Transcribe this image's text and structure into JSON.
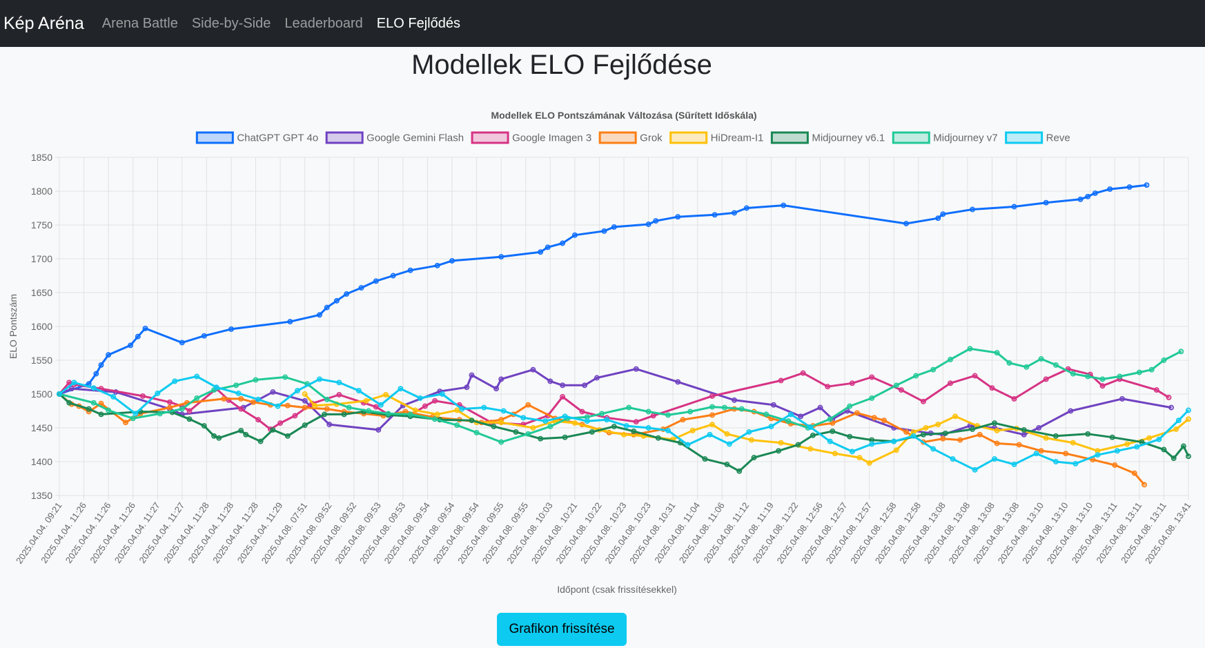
{
  "nav": {
    "brand": "Kép Aréna",
    "links": [
      "Arena Battle",
      "Side-by-Side",
      "Leaderboard",
      "ELO Fejlődés"
    ]
  },
  "page": {
    "title": "Modellek ELO Fejlődése",
    "refresh_label": "Grafikon frissítése"
  },
  "chart_data": {
    "type": "line",
    "title": "Modellek ELO Pontszámának Változása (Sűrített Időskála)",
    "xlabel": "Időpont (csak frissítésekkel)",
    "ylabel": "ELO Pontszám",
    "ylim": [
      1350,
      1850
    ],
    "yticks": [
      1850,
      1800,
      1750,
      1700,
      1650,
      1600,
      1550,
      1500,
      1450,
      1400,
      1350
    ],
    "xlim": [
      0,
      46
    ],
    "grid": true,
    "legend": "top",
    "x_tick_labels": [
      "2025.04.04. 09:21",
      "2025.04.04. 11:26",
      "2025.04.04. 11:26",
      "2025.04.04. 11:26",
      "2025.04.04. 11:27",
      "2025.04.04. 11:27",
      "2025.04.04. 11:28",
      "2025.04.04. 11:28",
      "2025.04.04. 11:28",
      "2025.04.04. 11:29",
      "2025.04.08. 07:51",
      "2025.04.08. 09:52",
      "2025.04.08. 09:52",
      "2025.04.08. 09:53",
      "2025.04.08. 09:53",
      "2025.04.08. 09:54",
      "2025.04.08. 09:54",
      "2025.04.08. 09:54",
      "2025.04.08. 09:55",
      "2025.04.08. 09:55",
      "2025.04.08. 10:03",
      "2025.04.08. 10:21",
      "2025.04.08. 10:22",
      "2025.04.08. 10:23",
      "2025.04.08. 10:23",
      "2025.04.08. 10:31",
      "2025.04.08. 11:04",
      "2025.04.08. 11:06",
      "2025.04.08. 11:12",
      "2025.04.08. 11:19",
      "2025.04.08. 11:22",
      "2025.04.08. 12:56",
      "2025.04.08. 12:57",
      "2025.04.08. 12:57",
      "2025.04.08. 12:58",
      "2025.04.08. 12:58",
      "2025.04.08. 13:08",
      "2025.04.08. 13:08",
      "2025.04.08. 13:08",
      "2025.04.08. 13:08",
      "2025.04.08. 13:10",
      "2025.04.08. 13:10",
      "2025.04.08. 13:10",
      "2025.04.08. 13:11",
      "2025.04.08. 13:11",
      "2025.04.08. 13:11",
      "2025.04.08. 13:41"
    ],
    "series": [
      {
        "name": "ChatGPT GPT 4o",
        "color": "#0d6efd",
        "x": [
          0,
          1.2,
          1.5,
          1.7,
          2,
          2.9,
          3.2,
          3.5,
          5,
          5.9,
          7,
          9.4,
          10.6,
          10.9,
          11.3,
          11.7,
          12.3,
          12.9,
          13.6,
          14.3,
          15.4,
          16,
          18,
          19.6,
          19.9,
          20.5,
          21,
          22.2,
          22.6,
          24,
          24.3,
          25.2,
          26.7,
          27.5,
          28,
          29.5,
          34.5,
          35.8,
          36,
          37.2,
          38.9,
          40.2,
          41.6,
          41.9,
          42.2,
          42.8,
          43.6,
          44.3
        ],
        "y": [
          1500,
          1515,
          1530,
          1543,
          1558,
          1572,
          1585,
          1597,
          1576,
          1586,
          1596,
          1607,
          1617,
          1628,
          1638,
          1648,
          1657,
          1667,
          1675,
          1683,
          1690,
          1697,
          1703,
          1710,
          1717,
          1723,
          1735,
          1741,
          1747,
          1751,
          1756,
          1762,
          1765,
          1768,
          1775,
          1779,
          1752,
          1760,
          1766,
          1773,
          1777,
          1783,
          1788,
          1792,
          1797,
          1803,
          1806,
          1809
        ]
      },
      {
        "name": "Google Gemini Flash",
        "color": "#6f42c1",
        "x": [
          0,
          0.5,
          2.3,
          4.5,
          5,
          7.5,
          8.7,
          10,
          11,
          13,
          14,
          15.5,
          16.6,
          16.8,
          17.8,
          18,
          19.3,
          20,
          20.5,
          21.4,
          21.9,
          23.5,
          25.2,
          27.5,
          29.1,
          30.2,
          31,
          31.5,
          32.1,
          34,
          35.5,
          36,
          37.1,
          38.1,
          39.3,
          39.9,
          41.2,
          43.3,
          45.3
        ],
        "y": [
          1500,
          1508,
          1503,
          1478,
          1470,
          1480,
          1503,
          1490,
          1455,
          1447,
          1483,
          1504,
          1510,
          1528,
          1508,
          1522,
          1536,
          1519,
          1513,
          1513,
          1524,
          1537,
          1518,
          1491,
          1484,
          1467,
          1480,
          1463,
          1475,
          1450,
          1442,
          1440,
          1453,
          1450,
          1440,
          1450,
          1475,
          1493,
          1480
        ]
      },
      {
        "name": "Google Imagen 3",
        "color": "#d63384",
        "x": [
          0,
          0.4,
          0.6,
          1.7,
          3.4,
          4.5,
          5,
          5.3,
          6.4,
          6.9,
          7.4,
          8.1,
          8.6,
          9,
          9.6,
          10.3,
          11.4,
          12.4,
          12.9,
          13.4,
          14.3,
          14.9,
          15.3,
          16.3,
          17.6,
          18.9,
          19.9,
          20.5,
          21.3,
          22.3,
          23.5,
          24.2,
          26.6,
          29.4,
          30.3,
          31.3,
          32.3,
          33.1,
          34.3,
          35.2,
          36.3,
          37.3,
          38,
          38.9,
          40.2,
          41.1,
          42,
          42.5,
          43.2,
          44.7,
          45.2
        ],
        "y": [
          1500,
          1517,
          1514,
          1508,
          1497,
          1488,
          1482,
          1475,
          1508,
          1491,
          1478,
          1462,
          1448,
          1457,
          1468,
          1486,
          1499,
          1487,
          1481,
          1470,
          1469,
          1482,
          1490,
          1484,
          1458,
          1455,
          1468,
          1496,
          1474,
          1465,
          1459,
          1468,
          1497,
          1520,
          1531,
          1511,
          1516,
          1525,
          1506,
          1489,
          1516,
          1527,
          1509,
          1493,
          1522,
          1537,
          1529,
          1512,
          1522,
          1506,
          1495
        ]
      },
      {
        "name": "Grok",
        "color": "#fd7e14",
        "x": [
          0,
          0.5,
          0.8,
          1.2,
          1.7,
          2.7,
          3.3,
          4.5,
          5.2,
          6.7,
          7.4,
          7.9,
          8.6,
          9.3,
          10,
          10.9,
          11.6,
          12.4,
          13.2,
          14.1,
          15.2,
          16.3,
          17.2,
          18,
          18.5,
          19.1,
          20.2,
          21.3,
          22.4,
          23.4,
          24.6,
          25.4,
          26.6,
          27.5,
          28.3,
          29,
          29.8,
          30.7,
          31.5,
          32.5,
          33.2,
          33.6,
          34.5,
          35.2,
          36,
          36.7,
          37.5,
          38.2,
          39.1,
          40,
          41,
          42.1,
          43,
          43.8,
          44.2
        ],
        "y": [
          1500,
          1485,
          1482,
          1474,
          1486,
          1458,
          1471,
          1480,
          1487,
          1493,
          1493,
          1488,
          1484,
          1483,
          1480,
          1478,
          1474,
          1471,
          1468,
          1474,
          1466,
          1462,
          1458,
          1462,
          1470,
          1484,
          1464,
          1455,
          1443,
          1440,
          1448,
          1462,
          1469,
          1478,
          1474,
          1464,
          1456,
          1453,
          1457,
          1472,
          1465,
          1461,
          1444,
          1429,
          1434,
          1432,
          1440,
          1427,
          1425,
          1416,
          1412,
          1403,
          1395,
          1383,
          1366
        ]
      },
      {
        "name": "HiDream-I1",
        "color": "#ffc107",
        "x": [
          10,
          10.4,
          11.3,
          12.5,
          13.3,
          14.5,
          15.4,
          16.2,
          17,
          18,
          19.3,
          20.2,
          21,
          22,
          23,
          23.8,
          25,
          25.8,
          26.6,
          27.2,
          28.2,
          29.4,
          30.6,
          31.6,
          32.6,
          33,
          34.1,
          34.8,
          35.3,
          35.8,
          36.5,
          37.4,
          38.2,
          39,
          40.2,
          41.3,
          42.3,
          43.5,
          44.4,
          45.5,
          46
        ],
        "y": [
          1500,
          1483,
          1485,
          1490,
          1499,
          1476,
          1470,
          1476,
          1458,
          1458,
          1450,
          1460,
          1457,
          1447,
          1440,
          1438,
          1433,
          1446,
          1455,
          1441,
          1432,
          1428,
          1419,
          1412,
          1406,
          1398,
          1417,
          1444,
          1450,
          1455,
          1467,
          1453,
          1446,
          1449,
          1435,
          1428,
          1416,
          1426,
          1435,
          1448,
          1463
        ]
      },
      {
        "name": "Midjourney v6.1",
        "color": "#198754",
        "x": [
          0,
          0.4,
          1.2,
          1.7,
          3.3,
          4.6,
          5.3,
          5.9,
          6.3,
          6.5,
          7.4,
          7.6,
          8.2,
          8.7,
          9.3,
          10,
          10.8,
          11.6,
          12.4,
          13.4,
          14.3,
          15.5,
          16.8,
          17.7,
          18.6,
          19.6,
          20.6,
          21.7,
          22.6,
          23.4,
          24.4,
          25.3,
          26.3,
          27.2,
          27.7,
          28.3,
          29.3,
          30.1,
          30.7,
          31.5,
          32.2,
          33.1,
          34,
          35.2,
          36.1,
          37.2,
          38.1,
          39.3,
          40.6,
          41.9,
          42.9,
          44.1,
          45,
          45.4,
          45.8,
          46
        ],
        "y": [
          1500,
          1487,
          1478,
          1470,
          1474,
          1473,
          1463,
          1453,
          1438,
          1435,
          1446,
          1440,
          1430,
          1447,
          1438,
          1454,
          1470,
          1470,
          1474,
          1469,
          1467,
          1462,
          1461,
          1452,
          1444,
          1434,
          1436,
          1444,
          1452,
          1445,
          1435,
          1428,
          1404,
          1396,
          1386,
          1406,
          1416,
          1425,
          1439,
          1445,
          1437,
          1432,
          1430,
          1440,
          1442,
          1448,
          1457,
          1447,
          1438,
          1441,
          1436,
          1429,
          1418,
          1405,
          1423,
          1408
        ]
      },
      {
        "name": "Midjourney v7",
        "color": "#20c997",
        "x": [
          0,
          1.4,
          2,
          3,
          4.1,
          5,
          5.6,
          6.3,
          7.2,
          8,
          9.2,
          10.1,
          10.9,
          11.8,
          12.6,
          13.4,
          14.3,
          15.3,
          16.2,
          17,
          18,
          19.1,
          20,
          20.7,
          21.5,
          22.1,
          23.2,
          24,
          24.8,
          25.7,
          26.6,
          27.1,
          27.8,
          28.8,
          29.7,
          30.5,
          31.4,
          32.2,
          33.1,
          34.1,
          34.9,
          35.6,
          36.3,
          37.1,
          38.2,
          38.7,
          39.4,
          40,
          40.6,
          41.3,
          41.9,
          42.5,
          43.2,
          44,
          44.5,
          45,
          45.7
        ],
        "y": [
          1500,
          1487,
          1476,
          1464,
          1471,
          1478,
          1494,
          1506,
          1513,
          1521,
          1525,
          1515,
          1492,
          1480,
          1475,
          1471,
          1470,
          1463,
          1454,
          1443,
          1429,
          1441,
          1452,
          1464,
          1466,
          1471,
          1480,
          1474,
          1469,
          1474,
          1481,
          1480,
          1478,
          1470,
          1460,
          1450,
          1463,
          1482,
          1494,
          1513,
          1527,
          1536,
          1551,
          1567,
          1561,
          1546,
          1540,
          1552,
          1543,
          1530,
          1526,
          1522,
          1526,
          1532,
          1536,
          1550,
          1563
        ]
      },
      {
        "name": "Reve",
        "color": "#0dcaf0",
        "x": [
          0,
          0.6,
          1.4,
          2.2,
          3.1,
          4,
          4.7,
          5.6,
          6.4,
          7.3,
          8.1,
          8.9,
          9.7,
          10.6,
          11.4,
          12.2,
          13.1,
          13.9,
          14.7,
          15.6,
          16.4,
          17.3,
          18.1,
          18.9,
          19.8,
          20.6,
          21.5,
          22.3,
          23.1,
          24,
          24.8,
          25.6,
          26.5,
          27.3,
          28.1,
          29,
          29.8,
          30.6,
          31.4,
          32.3,
          33.1,
          34,
          34.8,
          35.6,
          36.4,
          37.3,
          38.1,
          38.9,
          39.8,
          40.6,
          41.4,
          42.3,
          43.1,
          43.9,
          44.8,
          45.6,
          46
        ],
        "y": [
          1500,
          1517,
          1509,
          1496,
          1471,
          1501,
          1519,
          1526,
          1510,
          1501,
          1492,
          1482,
          1505,
          1522,
          1517,
          1505,
          1484,
          1508,
          1494,
          1500,
          1478,
          1480,
          1475,
          1465,
          1460,
          1467,
          1460,
          1462,
          1453,
          1450,
          1446,
          1425,
          1440,
          1426,
          1444,
          1452,
          1470,
          1451,
          1430,
          1415,
          1426,
          1430,
          1438,
          1419,
          1404,
          1388,
          1404,
          1396,
          1412,
          1400,
          1397,
          1410,
          1416,
          1422,
          1433,
          1461,
          1476
        ]
      }
    ]
  }
}
